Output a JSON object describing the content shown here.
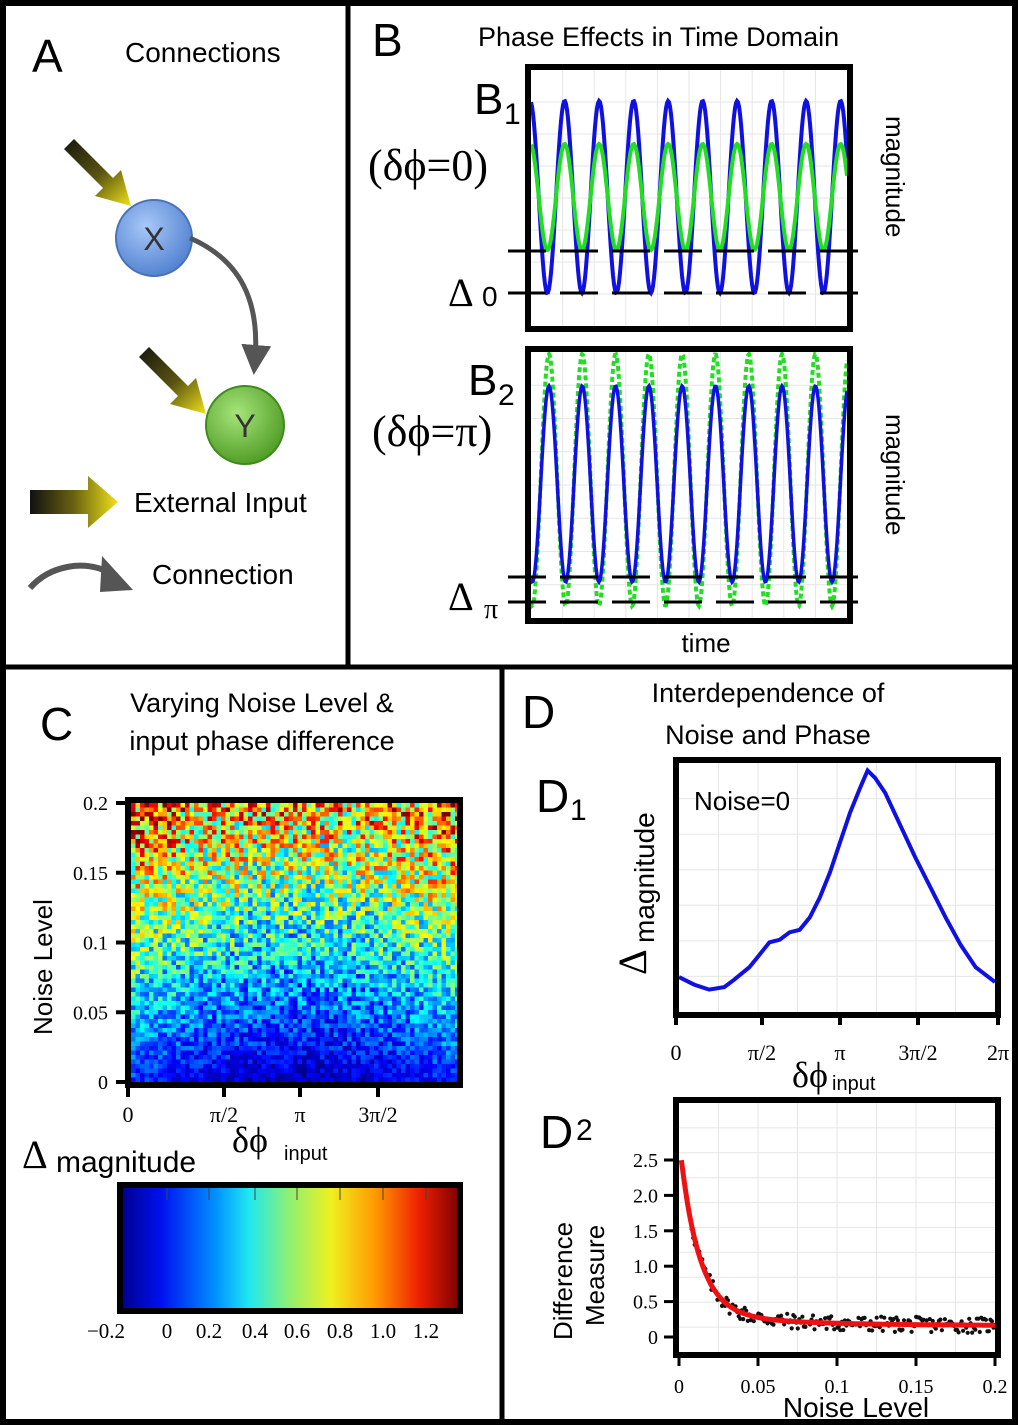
{
  "panelA": {
    "letter": "A",
    "title": "Connections",
    "nodeX": "X",
    "nodeY": "Y",
    "legend_external": "External Input",
    "legend_connection": "Connection",
    "colors": {
      "x_node": "#6f9fe0",
      "y_node": "#6fbf3a",
      "arrow_input": "#e8df1a",
      "arrow_connection": "#555555"
    }
  },
  "panelB": {
    "letter": "B",
    "title": "Phase Effects in Time Domain",
    "b1_label": "B",
    "b1_sub": "1",
    "b1_cond": "(δϕ=0)",
    "b1_delta": "Δ",
    "b1_delta_sub": "0",
    "b2_label": "B",
    "b2_sub": "2",
    "b2_cond": "(δϕ=π)",
    "b2_delta": "Δ",
    "b2_delta_sub": "π",
    "ylabel": "magnitude",
    "xlabel": "time",
    "colors": {
      "blue": "#1010e0",
      "green": "#22dd22"
    }
  },
  "panelC": {
    "letter": "C",
    "title_line1": "Varying Noise Level &",
    "title_line2": "input phase difference",
    "ylabel": "Noise Level",
    "xlabel_main": "δϕ",
    "xlabel_sub": "input",
    "colorbar_label_main": "Δ",
    "colorbar_label_sub": "magnitude",
    "y_ticks": [
      "0.2",
      "0.15",
      "0.1",
      "0.05",
      "0"
    ],
    "x_ticks": [
      "0",
      "π/2",
      "π",
      "3π/2"
    ],
    "colorbar_ticks": [
      "−0.2",
      "0",
      "0.2",
      "0.4",
      "0.6",
      "0.8",
      "1.0",
      "1.2"
    ]
  },
  "panelD": {
    "letter": "D",
    "title_line1": "Interdependence of",
    "title_line2": "Noise and Phase",
    "d1_label": "D",
    "d1_sub": "1",
    "d1_annotation": "Noise=0",
    "d1_ylabel_main": "Δ",
    "d1_ylabel_sub": "magnitude",
    "d1_xlabel_main": "δϕ",
    "d1_xlabel_sub": "input",
    "d1_x_ticks": [
      "0",
      "π/2",
      "π",
      "3π/2",
      "2π"
    ],
    "d2_label": "D",
    "d2_sub": "2",
    "d2_ylabel_line1": "Difference",
    "d2_ylabel_line2": "Measure",
    "d2_xlabel": "Noise Level",
    "d2_y_ticks": [
      "2.5",
      "2.0",
      "1.5",
      "1.0",
      "0.5",
      "0"
    ],
    "d2_x_ticks": [
      "0",
      "0.05",
      "0.1",
      "0.15",
      "0.2"
    ],
    "colors": {
      "d1_line": "#1010e0",
      "d2_fit": "#ee1111",
      "d2_points": "#111111"
    }
  },
  "chart_data": [
    {
      "type": "line",
      "xlabel": "δϕinput",
      "ylabel": "Δmagnitude",
      "annotation": "Noise=0",
      "x_ticks": [
        "0",
        "π/2",
        "π",
        "3π/2",
        "2π"
      ],
      "x_range": [
        0,
        6.2832
      ],
      "series": [
        {
          "x": [
            0,
            0.3,
            0.6,
            0.9,
            1.1,
            1.4,
            1.6,
            1.8,
            2.0,
            2.2,
            2.4,
            2.6,
            2.8,
            3.0,
            3.2,
            3.4,
            3.6,
            3.75,
            3.9,
            4.1,
            4.4,
            4.7,
            5.0,
            5.3,
            5.6,
            5.9,
            6.2832
          ],
          "y": [
            0.14,
            0.11,
            0.09,
            0.1,
            0.13,
            0.18,
            0.23,
            0.28,
            0.29,
            0.32,
            0.33,
            0.38,
            0.46,
            0.56,
            0.68,
            0.8,
            0.9,
            0.97,
            0.94,
            0.88,
            0.75,
            0.62,
            0.5,
            0.38,
            0.27,
            0.18,
            0.12
          ]
        }
      ]
    },
    {
      "type": "scatter",
      "xlabel": "Noise Level",
      "ylabel": "Difference Measure",
      "xlim": [
        0,
        0.2
      ],
      "ylim": [
        0,
        2.5
      ],
      "x_ticks": [
        "0",
        "0.05",
        "0.1",
        "0.15",
        "0.2"
      ],
      "y_ticks": [
        "0",
        "0.5",
        "1.0",
        "1.5",
        "2.0",
        "2.5"
      ],
      "fit_note": "red curve decays from ~2.6 at 0 to ~0.2 at 0.2"
    },
    {
      "type": "heatmap",
      "xlabel": "δϕinput",
      "ylabel": "Noise Level",
      "x_ticks": [
        "0",
        "π/2",
        "π",
        "3π/2"
      ],
      "y_ticks": [
        "0",
        "0.05",
        "0.1",
        "0.15",
        "0.2"
      ],
      "colorbar_range": [
        -0.2,
        1.2
      ]
    }
  ]
}
